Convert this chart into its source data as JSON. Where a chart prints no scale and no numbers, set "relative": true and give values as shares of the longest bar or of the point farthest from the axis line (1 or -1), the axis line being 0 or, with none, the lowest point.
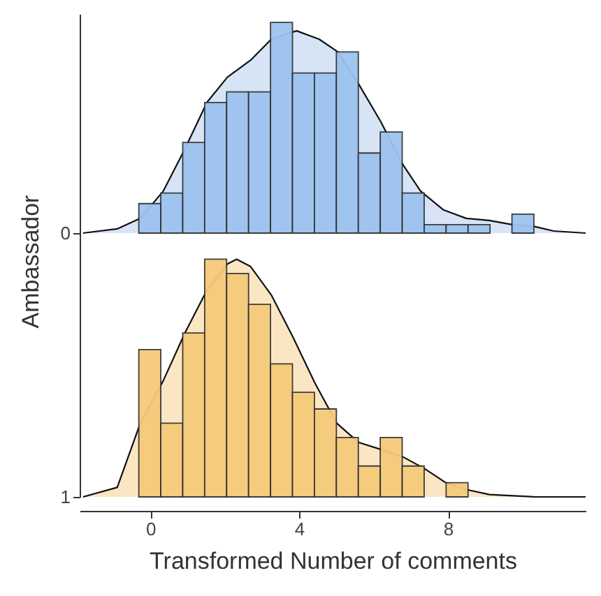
{
  "chart_data": [
    {
      "type": "histogram",
      "relative": true,
      "ylabel": "Ambassador",
      "annotations": [
        "0"
      ],
      "xlim": [
        -1.9,
        11.7
      ],
      "tick_labels": false,
      "grid": false,
      "series": [
        {
          "type": "area",
          "color": "#d6e4f5",
          "x": [
            -1.81,
            -0.89,
            -0.27,
            0.35,
            0.93,
            1.52,
            2.07,
            2.69,
            3.25,
            3.93,
            4.54,
            5.04,
            5.59,
            6.19,
            6.77,
            7.26,
            7.88,
            8.49,
            9.11,
            9.73,
            10.35,
            10.84,
            11.7
          ],
          "values": [
            0,
            0.02,
            0.07,
            0.2,
            0.4,
            0.62,
            0.74,
            0.82,
            0.92,
            0.96,
            0.92,
            0.86,
            0.71,
            0.53,
            0.33,
            0.2,
            0.11,
            0.07,
            0.06,
            0.04,
            0.03,
            0.01,
            0
          ]
        },
        {
          "type": "histogram",
          "color": "#9dc3ef",
          "bins": [
            -0.31,
            0.28,
            0.87,
            1.46,
            2.05,
            2.64,
            3.23,
            3.82,
            4.41,
            5.0,
            5.59,
            6.18,
            6.77,
            7.36,
            7.95,
            8.54,
            9.13,
            9.72,
            10.31
          ],
          "values": [
            0.14,
            0.19,
            0.43,
            0.62,
            0.67,
            0.67,
            1.0,
            0.76,
            0.76,
            0.86,
            0.38,
            0.48,
            0.19,
            0.04,
            0.04,
            0.04,
            null,
            0.09
          ]
        }
      ]
    },
    {
      "type": "histogram",
      "relative": true,
      "xlabel": "Transformed Number of comments",
      "annotations": [
        "1"
      ],
      "xlim": [
        -1.9,
        11.7
      ],
      "xticks": [
        0,
        4,
        8
      ],
      "tick_labels": "x",
      "grid": false,
      "series": [
        {
          "type": "area",
          "color": "#fbe6c3",
          "x": [
            -1.81,
            -0.89,
            -0.27,
            0.35,
            0.93,
            1.52,
            2.07,
            2.32,
            2.69,
            3.25,
            3.84,
            4.42,
            5.01,
            5.59,
            6.19,
            6.77,
            7.36,
            7.94,
            8.52,
            9.11,
            10.35,
            11.7
          ],
          "values": [
            0,
            0.04,
            0.31,
            0.49,
            0.69,
            0.87,
            0.98,
            1.0,
            0.97,
            0.85,
            0.67,
            0.48,
            0.31,
            0.23,
            0.2,
            0.17,
            0.12,
            0.06,
            0.03,
            0.01,
            0,
            0
          ]
        },
        {
          "type": "histogram",
          "color": "#f5ca7a",
          "bins": [
            -0.31,
            0.28,
            0.87,
            1.46,
            2.05,
            2.64,
            3.23,
            3.82,
            4.41,
            5.0,
            5.59,
            6.18,
            6.77,
            7.36,
            7.95,
            8.54
          ],
          "values": [
            0.62,
            0.31,
            0.69,
            1.0,
            0.94,
            0.81,
            0.56,
            0.44,
            0.37,
            0.25,
            0.13,
            0.25,
            0.13,
            null,
            0.06
          ]
        }
      ]
    }
  ]
}
